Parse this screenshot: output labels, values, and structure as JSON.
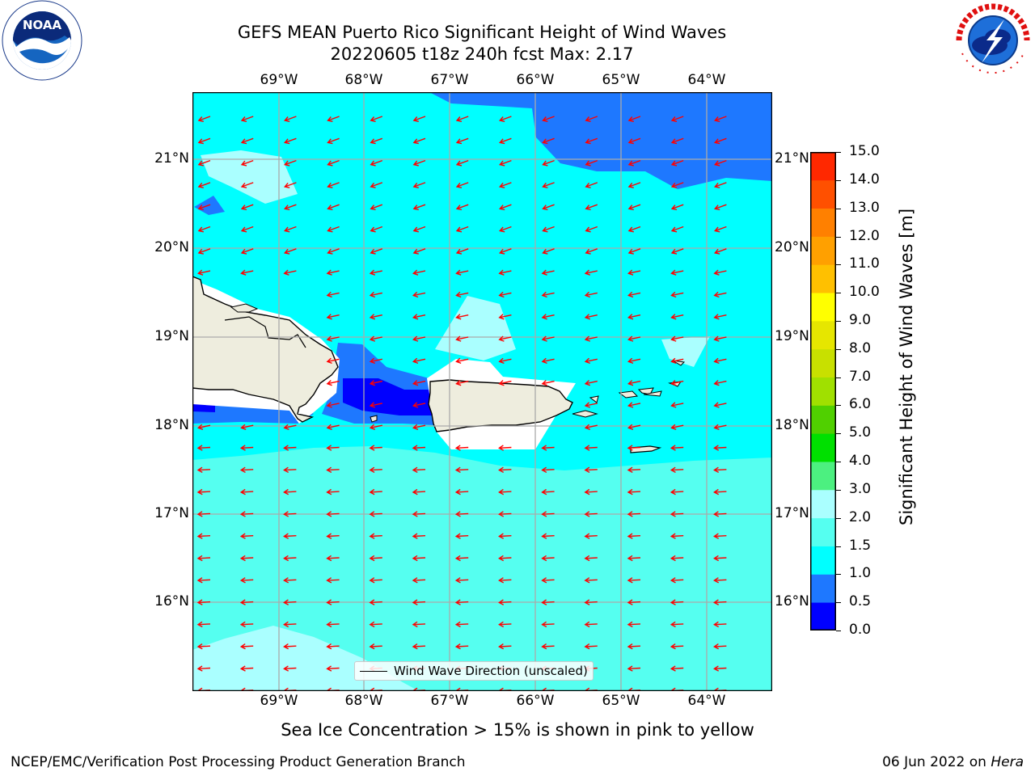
{
  "title": {
    "line1": "GEFS MEAN Puerto Rico Significant Height of Wind Waves",
    "line2": "20220605 t18z 240h fcst   Max: 2.17"
  },
  "map": {
    "lon_labels": [
      "69°W",
      "68°W",
      "67°W",
      "66°W",
      "65°W",
      "64°W"
    ],
    "lat_labels": [
      "21°N",
      "20°N",
      "19°N",
      "18°N",
      "17°N",
      "16°N"
    ],
    "lon_range": [
      -70.0,
      -63.25
    ],
    "lat_range": [
      15.0,
      21.75
    ],
    "ocean_color": "#00FFFF",
    "land_color": "#EEEDDE",
    "arrow_color": "#FF0000",
    "wave_direction": "from east-northeast toward west-southwest",
    "legend_label": "Wind Wave Direction (unscaled)"
  },
  "colorbar": {
    "label": "Significant Height of Wind Waves [m]",
    "ticks": [
      "0.0",
      "0.5",
      "1.0",
      "1.5",
      "2.0",
      "3.0",
      "4.0",
      "5.0",
      "6.0",
      "7.0",
      "8.0",
      "9.0",
      "10.0",
      "11.0",
      "12.0",
      "13.0",
      "14.0",
      "15.0"
    ],
    "colors": [
      "#0000FF",
      "#1E78FF",
      "#00FFFF",
      "#55FFF0",
      "#AAFFFF",
      "#4CF080",
      "#00E000",
      "#50D000",
      "#A0E000",
      "#C8E000",
      "#E6E600",
      "#FFFF00",
      "#FFC000",
      "#FFA000",
      "#FF8000",
      "#FF5000",
      "#FF2800"
    ]
  },
  "caption": "Sea Ice Concentration > 15% is shown in pink to yellow",
  "footer": {
    "left": "NCEP/EMC/Verification Post Processing Product Generation Branch",
    "date": "06 Jun 2022 on ",
    "machine": "Hera"
  },
  "logos": {
    "noaa_text": "NOAA",
    "noaa_ring": "NATIONAL OCEANIC AND ATMOSPHERIC ADMINISTRATION · U.S. DEPARTMENT OF COMMERCE",
    "nws_ring": "NATIONAL WEATHER SERVICE"
  }
}
